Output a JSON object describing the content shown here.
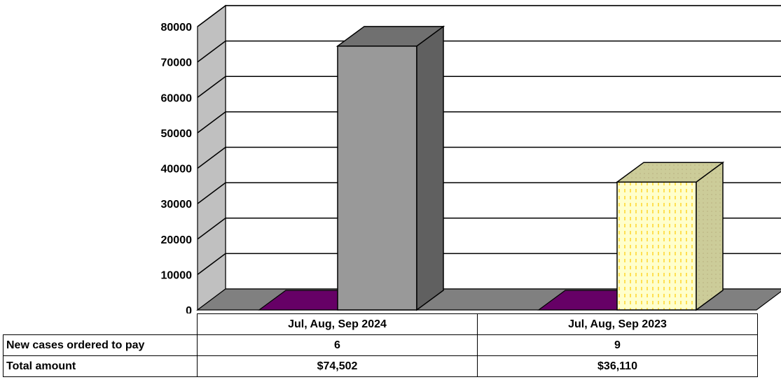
{
  "chart_data": {
    "type": "bar",
    "categories": [
      "Jul, Aug, Sep 2024",
      "Jul, Aug, Sep 2023"
    ],
    "series": [
      {
        "values": [
          0,
          0
        ],
        "color": "#660066"
      },
      {
        "values": [
          74502,
          36110
        ],
        "colors": [
          "#999999",
          "#FFFFCC"
        ]
      }
    ],
    "ylim": [
      0,
      80000
    ],
    "yticks": [
      0,
      10000,
      20000,
      30000,
      40000,
      50000,
      60000,
      70000,
      80000
    ],
    "ytick_labels": [
      "0",
      "10000",
      "20000",
      "30000",
      "40000",
      "50000",
      "60000",
      "70000",
      "80000"
    ],
    "grid": true,
    "chart_3d": true,
    "colors": {
      "wall": "#C0C0C0",
      "floor": "#808080",
      "dots": "#FFCC00"
    }
  },
  "table": {
    "headers": [
      "Jul, Aug, Sep 2024",
      "Jul, Aug, Sep 2023"
    ],
    "rows": [
      {
        "label": "New cases ordered to pay",
        "values": [
          "6",
          "9"
        ]
      },
      {
        "label": "Total amount",
        "values": [
          "$74,502",
          "$36,110"
        ]
      }
    ]
  }
}
